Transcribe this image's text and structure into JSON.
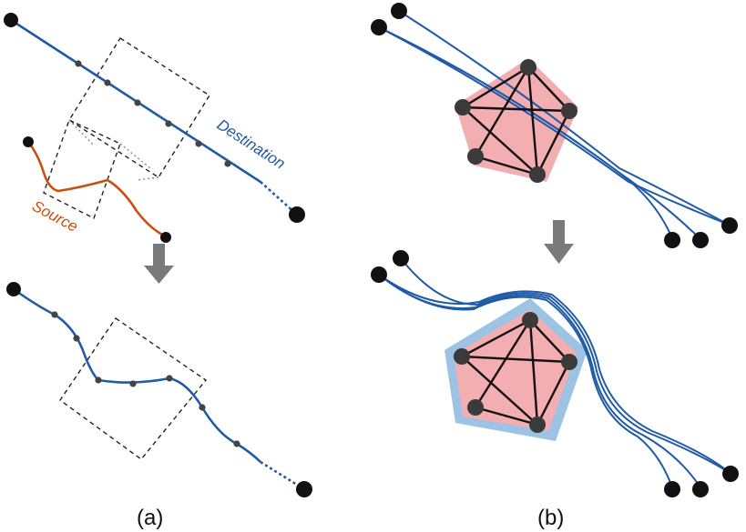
{
  "labels": {
    "destination": "Destination",
    "source": "Source",
    "panel_a": "(a)",
    "panel_b": "(b)"
  },
  "colors": {
    "destination": "#1f5aa6",
    "source": "#c8500c",
    "node": "#3a3a3a",
    "endpoint": "#111111",
    "arrow": "#7a7a7a",
    "cluster_fill": "#f2aeb0",
    "cluster_halo": "#9cc3e4"
  }
}
